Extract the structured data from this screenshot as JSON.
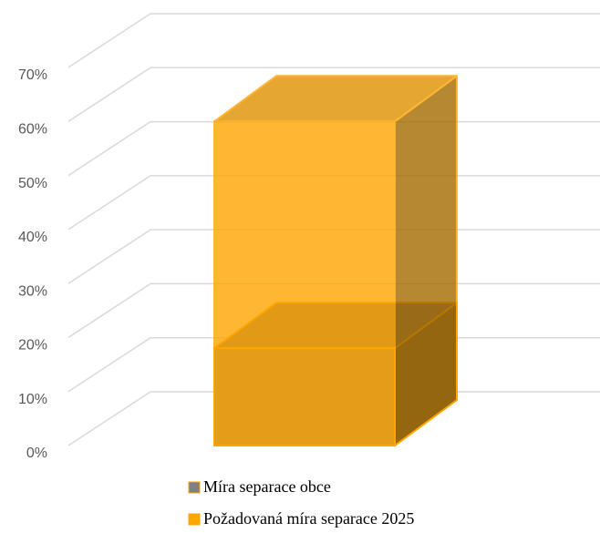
{
  "chart_data": {
    "type": "bar3d",
    "categories": [
      null
    ],
    "series": [
      {
        "name": "Míra separace obce",
        "color": "#808080",
        "values": [
          18
        ]
      },
      {
        "name": "Požadovaná míra separace 2025",
        "color": "#ffa500",
        "values": [
          60
        ]
      }
    ],
    "ylim": [
      0,
      70
    ],
    "yticks": [
      {
        "value": 0,
        "label": "0%"
      },
      {
        "value": 10,
        "label": "10%"
      },
      {
        "value": 20,
        "label": "20%"
      },
      {
        "value": 30,
        "label": "30%"
      },
      {
        "value": 40,
        "label": "40%"
      },
      {
        "value": 50,
        "label": "50%"
      },
      {
        "value": 60,
        "label": "60%"
      },
      {
        "value": 70,
        "label": "70%"
      }
    ],
    "grid": true,
    "legend": "bottom"
  }
}
